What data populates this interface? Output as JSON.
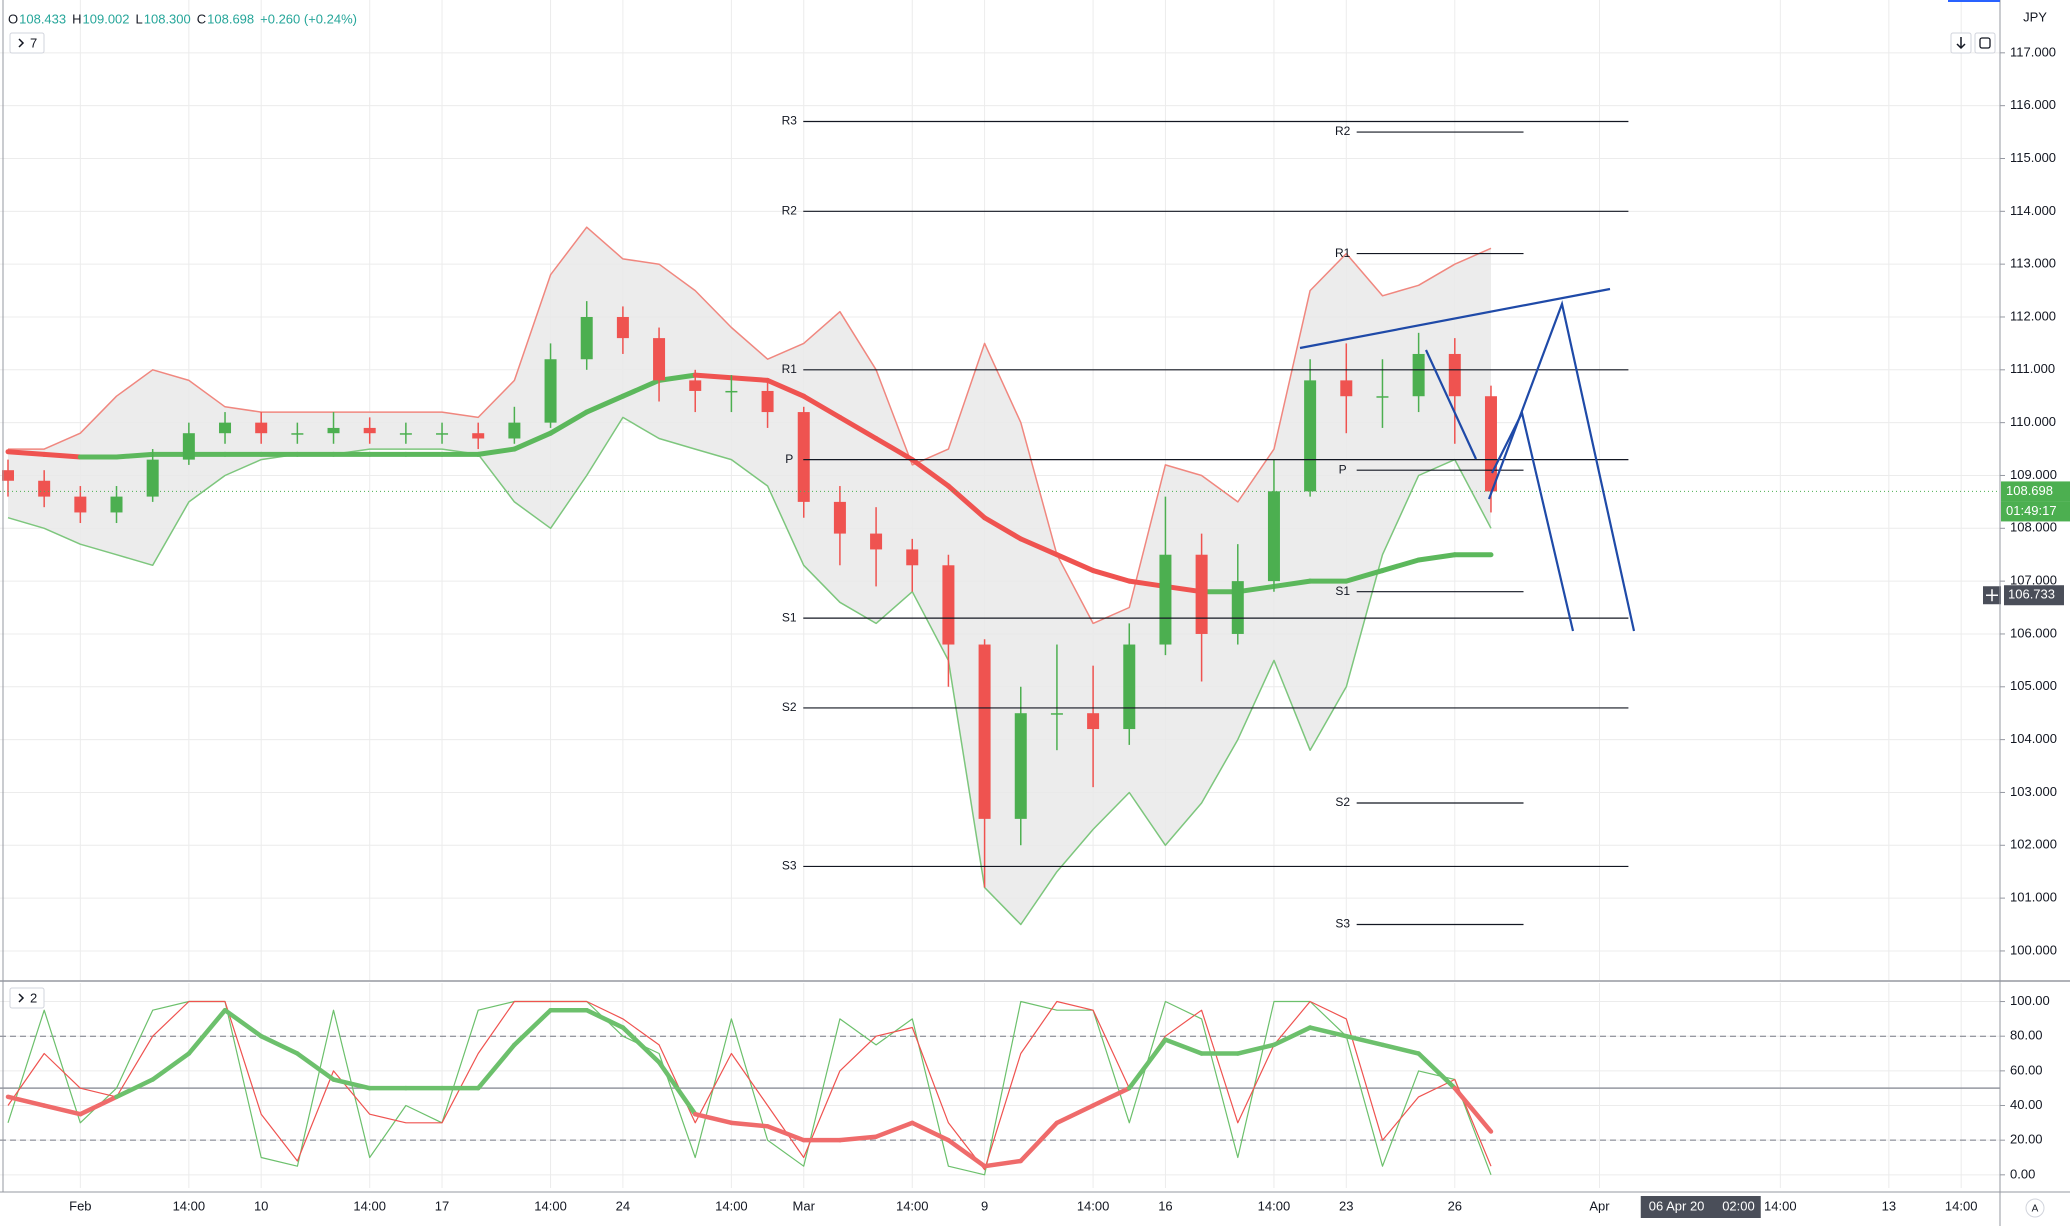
{
  "chart_data": [
    {
      "type": "candlestick",
      "currency": "JPY",
      "indicator_count": "7",
      "header": {
        "ohlc": [
          {
            "key": "O",
            "value": "108.433"
          },
          {
            "key": "H",
            "value": "109.002"
          },
          {
            "key": "L",
            "value": "108.300"
          },
          {
            "key": "C",
            "value": "108.698"
          }
        ],
        "change": "+0.260 (+0.24%)"
      },
      "categories": [
        null,
        null,
        "Feb",
        null,
        null,
        "14:00",
        null,
        "10",
        null,
        null,
        "14:00",
        null,
        "17",
        null,
        null,
        "14:00",
        null,
        "24",
        null,
        null,
        "14:00",
        null,
        "Mar",
        null,
        null,
        "14:00",
        null,
        "9",
        null,
        null,
        "14:00",
        null,
        "16",
        null,
        null,
        "14:00",
        null,
        "23",
        null,
        null,
        "26",
        null,
        null,
        null,
        "Apr",
        null,
        null,
        null,
        null,
        "14:00",
        null,
        null,
        "13",
        null,
        "14:00",
        null
      ],
      "candles": {
        "open": [
          109.1,
          108.9,
          108.6,
          108.3,
          108.6,
          109.3,
          109.8,
          110.0,
          109.8,
          109.8,
          109.9,
          109.8,
          109.8,
          109.8,
          109.7,
          110.0,
          111.2,
          112.0,
          111.6,
          110.8,
          110.6,
          110.6,
          110.2,
          108.5,
          107.9,
          107.6,
          107.3,
          105.8,
          102.5,
          104.5,
          104.5,
          104.2,
          105.8,
          107.5,
          106.0,
          107.0,
          108.7,
          110.8,
          110.5,
          110.5,
          111.3,
          110.5,
          null,
          null,
          null,
          null,
          null,
          null,
          null,
          null,
          null,
          null,
          null,
          null,
          null,
          null
        ],
        "high": [
          109.3,
          109.1,
          108.8,
          108.8,
          109.5,
          110.0,
          110.2,
          110.2,
          110.0,
          110.2,
          110.1,
          110.0,
          110.0,
          110.0,
          110.3,
          111.5,
          112.3,
          112.2,
          111.8,
          111.0,
          110.9,
          110.8,
          110.3,
          108.8,
          108.4,
          107.8,
          107.5,
          105.9,
          105.0,
          105.8,
          105.4,
          106.2,
          108.6,
          107.9,
          107.7,
          109.3,
          111.2,
          111.5,
          111.2,
          111.7,
          111.6,
          110.7,
          null,
          null,
          null,
          null,
          null,
          null,
          null,
          null,
          null,
          null,
          null,
          null,
          null,
          null
        ],
        "low": [
          108.6,
          108.4,
          108.1,
          108.1,
          108.5,
          109.2,
          109.6,
          109.6,
          109.6,
          109.6,
          109.6,
          109.6,
          109.6,
          109.5,
          109.6,
          109.9,
          111.0,
          111.3,
          110.4,
          110.2,
          110.2,
          109.9,
          108.2,
          107.3,
          106.9,
          106.8,
          105.0,
          101.2,
          102.0,
          103.8,
          103.1,
          103.9,
          105.6,
          105.1,
          105.8,
          106.8,
          108.6,
          109.8,
          109.9,
          110.2,
          109.6,
          108.3,
          null,
          null,
          null,
          null,
          null,
          null,
          null,
          null,
          null,
          null,
          null,
          null,
          null,
          null
        ],
        "close": [
          108.9,
          108.6,
          108.3,
          108.6,
          109.3,
          109.8,
          110.0,
          109.8,
          109.8,
          109.9,
          109.8,
          109.8,
          109.8,
          109.7,
          110.0,
          111.2,
          112.0,
          111.6,
          110.8,
          110.6,
          110.6,
          110.2,
          108.5,
          107.9,
          107.6,
          107.3,
          105.8,
          102.5,
          104.5,
          104.5,
          104.2,
          105.8,
          107.5,
          106.0,
          107.0,
          108.7,
          110.8,
          110.5,
          110.5,
          111.3,
          110.5,
          108.698,
          null,
          null,
          null,
          null,
          null,
          null,
          null,
          null,
          null,
          null,
          null,
          null,
          null,
          null
        ],
        "up_color": "#4caf50",
        "down_color": "#ef5350"
      },
      "series": [
        {
          "color": "#f0877f",
          "line_width": 1.5,
          "values": [
            109.5,
            109.5,
            109.8,
            110.5,
            111.0,
            110.8,
            110.3,
            110.2,
            110.2,
            110.2,
            110.2,
            110.2,
            110.2,
            110.1,
            110.8,
            112.8,
            113.7,
            113.1,
            113.0,
            112.5,
            111.8,
            111.2,
            111.5,
            112.1,
            111.0,
            109.2,
            109.5,
            111.5,
            110.0,
            107.5,
            106.2,
            106.5,
            109.2,
            109.0,
            108.5,
            109.5,
            112.5,
            113.2,
            112.4,
            112.6,
            113.0,
            113.3,
            null,
            null,
            null,
            null,
            null,
            null,
            null,
            null,
            null,
            null,
            null,
            null,
            null,
            null
          ]
        },
        {
          "color": "#7dc67d",
          "line_width": 1.5,
          "values": [
            108.2,
            108.0,
            107.7,
            107.5,
            107.3,
            108.5,
            109.0,
            109.3,
            109.4,
            109.4,
            109.5,
            109.5,
            109.5,
            109.4,
            108.5,
            108.0,
            109.0,
            110.1,
            109.7,
            109.5,
            109.3,
            108.8,
            107.3,
            106.6,
            106.2,
            106.8,
            105.5,
            101.2,
            100.5,
            101.5,
            102.3,
            103.0,
            102.0,
            102.8,
            104.0,
            105.5,
            103.8,
            105.0,
            107.5,
            109.0,
            109.3,
            108.0,
            null,
            null,
            null,
            null,
            null,
            null,
            null,
            null,
            null,
            null,
            null,
            null,
            null,
            null
          ]
        },
        {
          "rising_color": "#5cb85c",
          "falling_color": "#ef5350",
          "line_width": 5,
          "values": [
            109.45,
            109.4,
            109.35,
            109.35,
            109.4,
            109.4,
            109.4,
            109.4,
            109.4,
            109.4,
            109.4,
            109.4,
            109.4,
            109.4,
            109.5,
            109.8,
            110.2,
            110.5,
            110.8,
            110.9,
            110.85,
            110.8,
            110.5,
            110.1,
            109.7,
            109.3,
            108.8,
            108.2,
            107.8,
            107.5,
            107.2,
            107.0,
            106.9,
            106.8,
            106.8,
            106.9,
            107.0,
            107.0,
            107.2,
            107.4,
            107.5,
            107.5,
            null,
            null,
            null,
            null,
            null,
            null,
            null,
            null,
            null,
            null,
            null,
            null,
            null,
            null
          ]
        }
      ],
      "band_fill": "#e9e9e9",
      "pivots": [
        {
          "levels": [
            {
              "label": "R3",
              "value": 115.7
            },
            {
              "label": "R2",
              "value": 114.0
            },
            {
              "label": "R1",
              "value": 111.0
            },
            {
              "label": "P",
              "value": 109.3
            },
            {
              "label": "S1",
              "value": 106.3
            },
            {
              "label": "S2",
              "value": 104.6
            },
            {
              "label": "S3",
              "value": 101.6
            }
          ]
        },
        {
          "levels": [
            {
              "label": "R2",
              "value": 115.5
            },
            {
              "label": "R1",
              "value": 113.2
            },
            {
              "label": "P",
              "value": 109.1
            },
            {
              "label": "S1",
              "value": 106.8
            },
            {
              "label": "S2",
              "value": 102.8
            },
            {
              "label": "S3",
              "value": 100.5
            }
          ]
        }
      ],
      "last_price": 108.698,
      "countdown": "01:49:17",
      "crosshair": {
        "date": "06 Apr 20",
        "time": "02:00",
        "price": 106.733
      },
      "ylim": [
        99.45,
        118.0
      ],
      "yticks": [
        {
          "value": 100,
          "label": "100.000"
        },
        {
          "value": 101,
          "label": "101.000"
        },
        {
          "value": 102,
          "label": "102.000"
        },
        {
          "value": 103,
          "label": "103.000"
        },
        {
          "value": 104,
          "label": "104.000"
        },
        {
          "value": 105,
          "label": "105.000"
        },
        {
          "value": 106,
          "label": "106.000"
        },
        {
          "value": 107,
          "label": "107.000"
        },
        {
          "value": 108,
          "label": "108.000"
        },
        {
          "value": 109,
          "label": "109.000"
        },
        {
          "value": 110,
          "label": "110.000"
        },
        {
          "value": 111,
          "label": "111.000"
        },
        {
          "value": 112,
          "label": "112.000"
        },
        {
          "value": 113,
          "label": "113.000"
        },
        {
          "value": 114,
          "label": "114.000"
        },
        {
          "value": 115,
          "label": "115.000"
        },
        {
          "value": 116,
          "label": "116.000"
        },
        {
          "value": 117,
          "label": "117.000"
        }
      ],
      "grid": true,
      "auto_button": "A"
    },
    {
      "type": "line",
      "indicator_count": "2",
      "series": [
        {
          "color": "#6cc06c",
          "line_width": 1.2,
          "values": [
            30,
            95,
            30,
            50,
            95,
            100,
            100,
            10,
            5,
            95,
            10,
            40,
            30,
            95,
            100,
            100,
            100,
            80,
            70,
            10,
            90,
            20,
            5,
            90,
            75,
            90,
            5,
            0,
            100,
            95,
            95,
            30,
            100,
            90,
            10,
            100,
            100,
            80,
            5,
            60,
            55,
            0,
            null,
            null,
            null,
            null,
            null,
            null,
            null,
            null,
            null,
            null,
            null,
            null,
            null,
            null
          ]
        },
        {
          "color": "#ef5350",
          "line_width": 1.2,
          "values": [
            40,
            70,
            50,
            45,
            80,
            100,
            100,
            35,
            8,
            60,
            35,
            30,
            30,
            70,
            100,
            100,
            100,
            90,
            75,
            30,
            70,
            40,
            10,
            60,
            80,
            85,
            30,
            3,
            70,
            100,
            95,
            50,
            80,
            95,
            30,
            75,
            100,
            90,
            20,
            45,
            55,
            5,
            null,
            null,
            null,
            null,
            null,
            null,
            null,
            null,
            null,
            null,
            null,
            null,
            null,
            null
          ]
        },
        {
          "above_color": "#6cc06c",
          "below_color": "#ef6b6b",
          "line_width": 4.5,
          "values": [
            45,
            40,
            35,
            45,
            55,
            70,
            95,
            80,
            70,
            55,
            50,
            50,
            50,
            50,
            75,
            95,
            95,
            85,
            65,
            35,
            30,
            28,
            20,
            20,
            22,
            30,
            20,
            5,
            8,
            30,
            40,
            50,
            78,
            70,
            70,
            75,
            85,
            80,
            75,
            70,
            50,
            25,
            null,
            null,
            null,
            null,
            null,
            null,
            null,
            null,
            null,
            null,
            null,
            null,
            null,
            null
          ]
        }
      ],
      "levels": [
        80,
        50,
        20
      ],
      "level_styles": [
        "dashed",
        "solid",
        "dashed"
      ],
      "ylim": [
        -7.6,
        110.7
      ],
      "yticks": [
        {
          "value": 100,
          "label": "100.00"
        },
        {
          "value": 80,
          "label": "80.00"
        },
        {
          "value": 60,
          "label": "60.00"
        },
        {
          "value": 40,
          "label": "40.00"
        },
        {
          "value": 20,
          "label": "20.00"
        },
        {
          "value": 0,
          "label": "0.00"
        }
      ],
      "grid": true
    }
  ]
}
